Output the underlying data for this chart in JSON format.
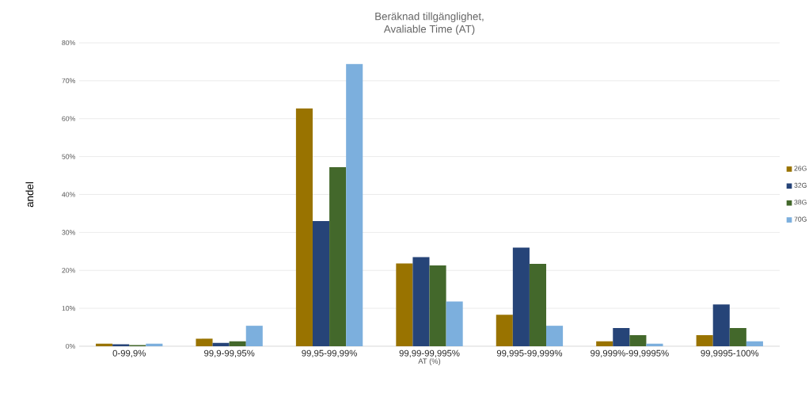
{
  "chart_data": {
    "type": "bar",
    "title": "Beräknad tillgänglighet,\nAvaliable Time (AT)",
    "xlabel": "AT (%)",
    "ylabel": "andel",
    "categories": [
      "0-99,9%",
      "99,9-99,95%",
      "99,95-99,99%",
      "99,99-99,995%",
      "99,995-99,999%",
      "99,999%-99,9995%",
      "99,9995-100%"
    ],
    "series": [
      {
        "name": "26G",
        "color": "#997300",
        "values": [
          0.7,
          2.0,
          62.7,
          21.8,
          8.3,
          1.3,
          2.9
        ]
      },
      {
        "name": "32G",
        "color": "#264478",
        "values": [
          0.5,
          0.9,
          33.0,
          23.5,
          26.0,
          4.8,
          11.0
        ]
      },
      {
        "name": "38G",
        "color": "#43682b",
        "values": [
          0.3,
          1.3,
          47.2,
          21.3,
          21.7,
          2.9,
          4.8
        ]
      },
      {
        "name": "70G",
        "color": "#7cafdd",
        "values": [
          0.7,
          5.4,
          74.4,
          11.8,
          5.4,
          0.7,
          1.3
        ]
      }
    ],
    "ylim": [
      0,
      80
    ],
    "yticks": [
      {
        "value": 0,
        "label": "0%"
      },
      {
        "value": 10,
        "label": "10%"
      },
      {
        "value": 20,
        "label": "20%"
      },
      {
        "value": 30,
        "label": "30%"
      },
      {
        "value": 40,
        "label": "40%"
      },
      {
        "value": 50,
        "label": "50%"
      },
      {
        "value": 60,
        "label": "60%"
      },
      {
        "value": 70,
        "label": "70%"
      },
      {
        "value": 80,
        "label": "80%"
      }
    ],
    "grid": "y",
    "legend": "right"
  }
}
